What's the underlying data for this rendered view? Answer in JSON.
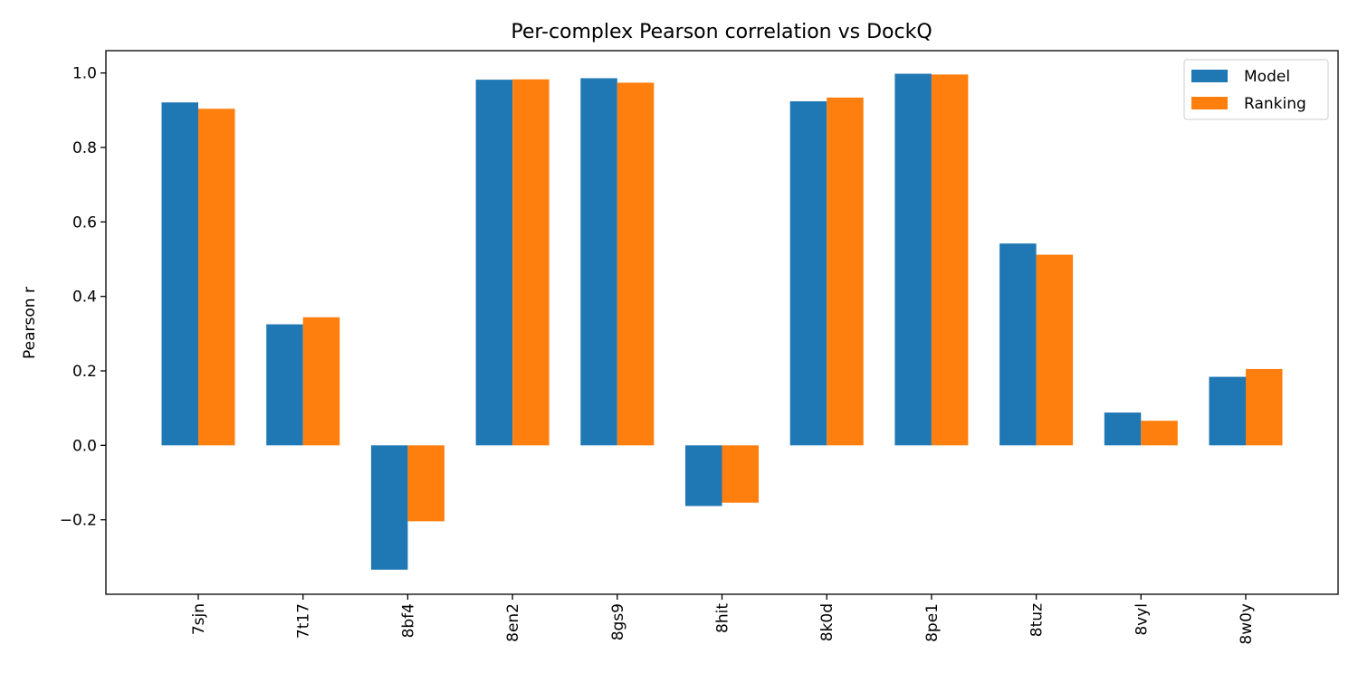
{
  "chart_data": {
    "type": "bar",
    "title": "Per-complex Pearson correlation vs DockQ",
    "xlabel": "",
    "ylabel": "Pearson r",
    "categories": [
      "7sjn",
      "7t17",
      "8bf4",
      "8en2",
      "8gs9",
      "8hit",
      "8k0d",
      "8pe1",
      "8tuz",
      "8vyl",
      "8w0y"
    ],
    "series": [
      {
        "name": "Model",
        "color": "#1f77b4",
        "values": [
          0.921,
          0.325,
          -0.334,
          0.982,
          0.986,
          -0.163,
          0.924,
          0.998,
          0.542,
          0.088,
          0.184
        ]
      },
      {
        "name": "Ranking",
        "color": "#ff7f0e",
        "values": [
          0.904,
          0.344,
          -0.204,
          0.983,
          0.974,
          -0.154,
          0.934,
          0.996,
          0.512,
          0.066,
          0.205
        ]
      }
    ],
    "ylim": [
      -0.4,
      1.06
    ],
    "yticks": [
      -0.2,
      0.0,
      0.2,
      0.4,
      0.6,
      0.8,
      1.0
    ],
    "ytick_labels": [
      "−0.2",
      "0.0",
      "0.2",
      "0.4",
      "0.6",
      "0.8",
      "1.0"
    ],
    "grid": false,
    "legend_position": "top-right"
  }
}
